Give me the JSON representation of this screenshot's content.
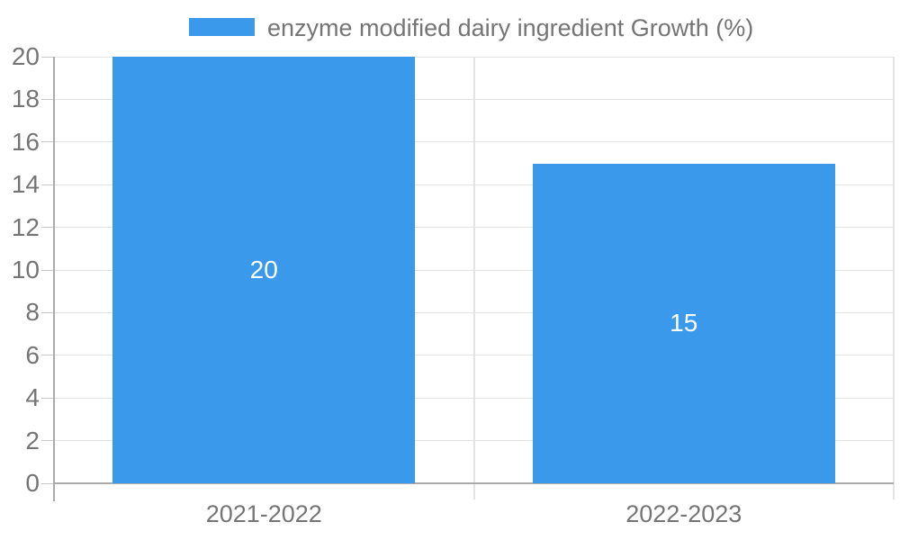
{
  "chart_data": {
    "type": "bar",
    "title": "",
    "legend": {
      "label": "enzyme modified dairy ingredient Growth (%)",
      "position": "top"
    },
    "categories": [
      "2021-2022",
      "2022-2023"
    ],
    "series": [
      {
        "name": "enzyme modified dairy ingredient Growth (%)",
        "values": [
          20,
          15
        ]
      }
    ],
    "bar_value_labels": [
      "20",
      "15"
    ],
    "ylim": [
      0,
      20
    ],
    "yticks": [
      0,
      2,
      4,
      6,
      8,
      10,
      12,
      14,
      16,
      18,
      20
    ],
    "xlabel": "",
    "ylabel": "",
    "grid": true
  },
  "colors": {
    "bar": "#3B99EC",
    "text": "#757575",
    "grid": "#e3e3e3",
    "axis": "#ababab",
    "tick": "#c9c9c9",
    "value_label": "#ffffff",
    "background": "#ffffff"
  }
}
